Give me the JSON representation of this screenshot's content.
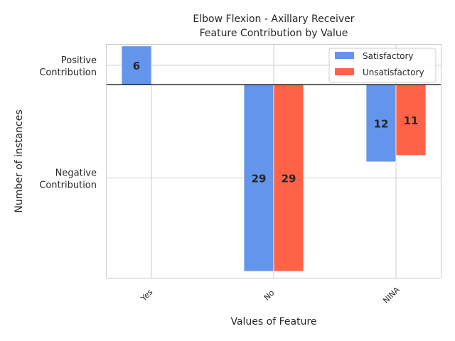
{
  "chart_data": {
    "type": "bar",
    "title_line1": "Elbow Flexion - Axillary Receiver",
    "title_line2": "Feature Contribution by Value",
    "xlabel": "Values of Feature",
    "ylabel": "Number of instances",
    "categories": [
      "Yes",
      "No",
      "NINA"
    ],
    "series": [
      {
        "name": "Satisfactory",
        "color": "#6495ED",
        "values": [
          6,
          -29,
          -12
        ],
        "labels": [
          "6",
          "29",
          "12"
        ]
      },
      {
        "name": "Unsatisfactory",
        "color": "#FF6347",
        "values": [
          0,
          -29,
          -11
        ],
        "labels": [
          "",
          "29",
          "11"
        ]
      }
    ],
    "yticks": [
      {
        "value": 3,
        "line1": "Positive",
        "line2": "Contribution"
      },
      {
        "value": -14.5,
        "line1": "Negative",
        "line2": "Contribution"
      }
    ],
    "ylim": [
      -30,
      6.3
    ],
    "grid": true,
    "legend_position": "upper right"
  }
}
